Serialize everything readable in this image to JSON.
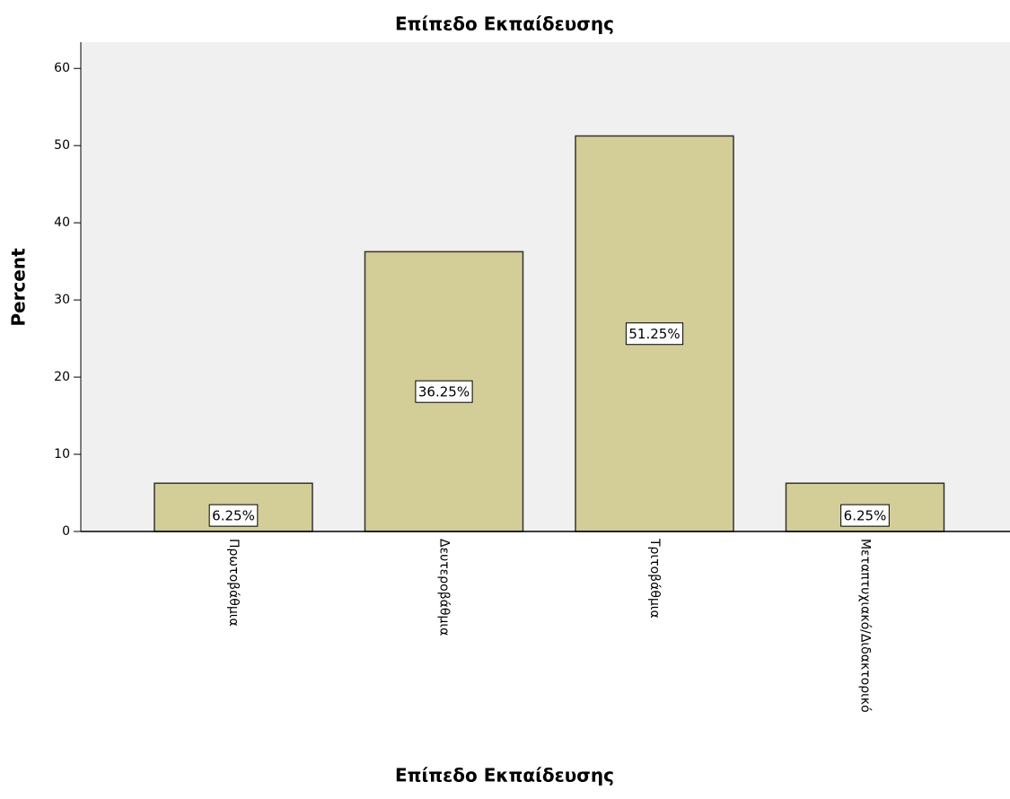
{
  "chart_data": {
    "type": "bar",
    "title": "Επίπεδο Εκπαίδευσης",
    "x_label": "Επίπεδο Εκπαίδευσης",
    "y_label": "Percent",
    "categories": [
      "Πρωτοβάθμια",
      "Δευτεροβάθμια",
      "Τριτοβάθμια",
      "Μεταπτυχιακό/Διδακτορικό"
    ],
    "values": [
      6.25,
      36.25,
      51.25,
      6.25
    ],
    "value_labels": [
      "6.25%",
      "36.25%",
      "51.25%",
      "6.25%"
    ],
    "color": "#d3ce97",
    "ylim": [
      0,
      63.4
    ],
    "yticks": [
      0,
      10,
      20,
      30,
      40,
      50,
      60
    ],
    "grid": false
  }
}
